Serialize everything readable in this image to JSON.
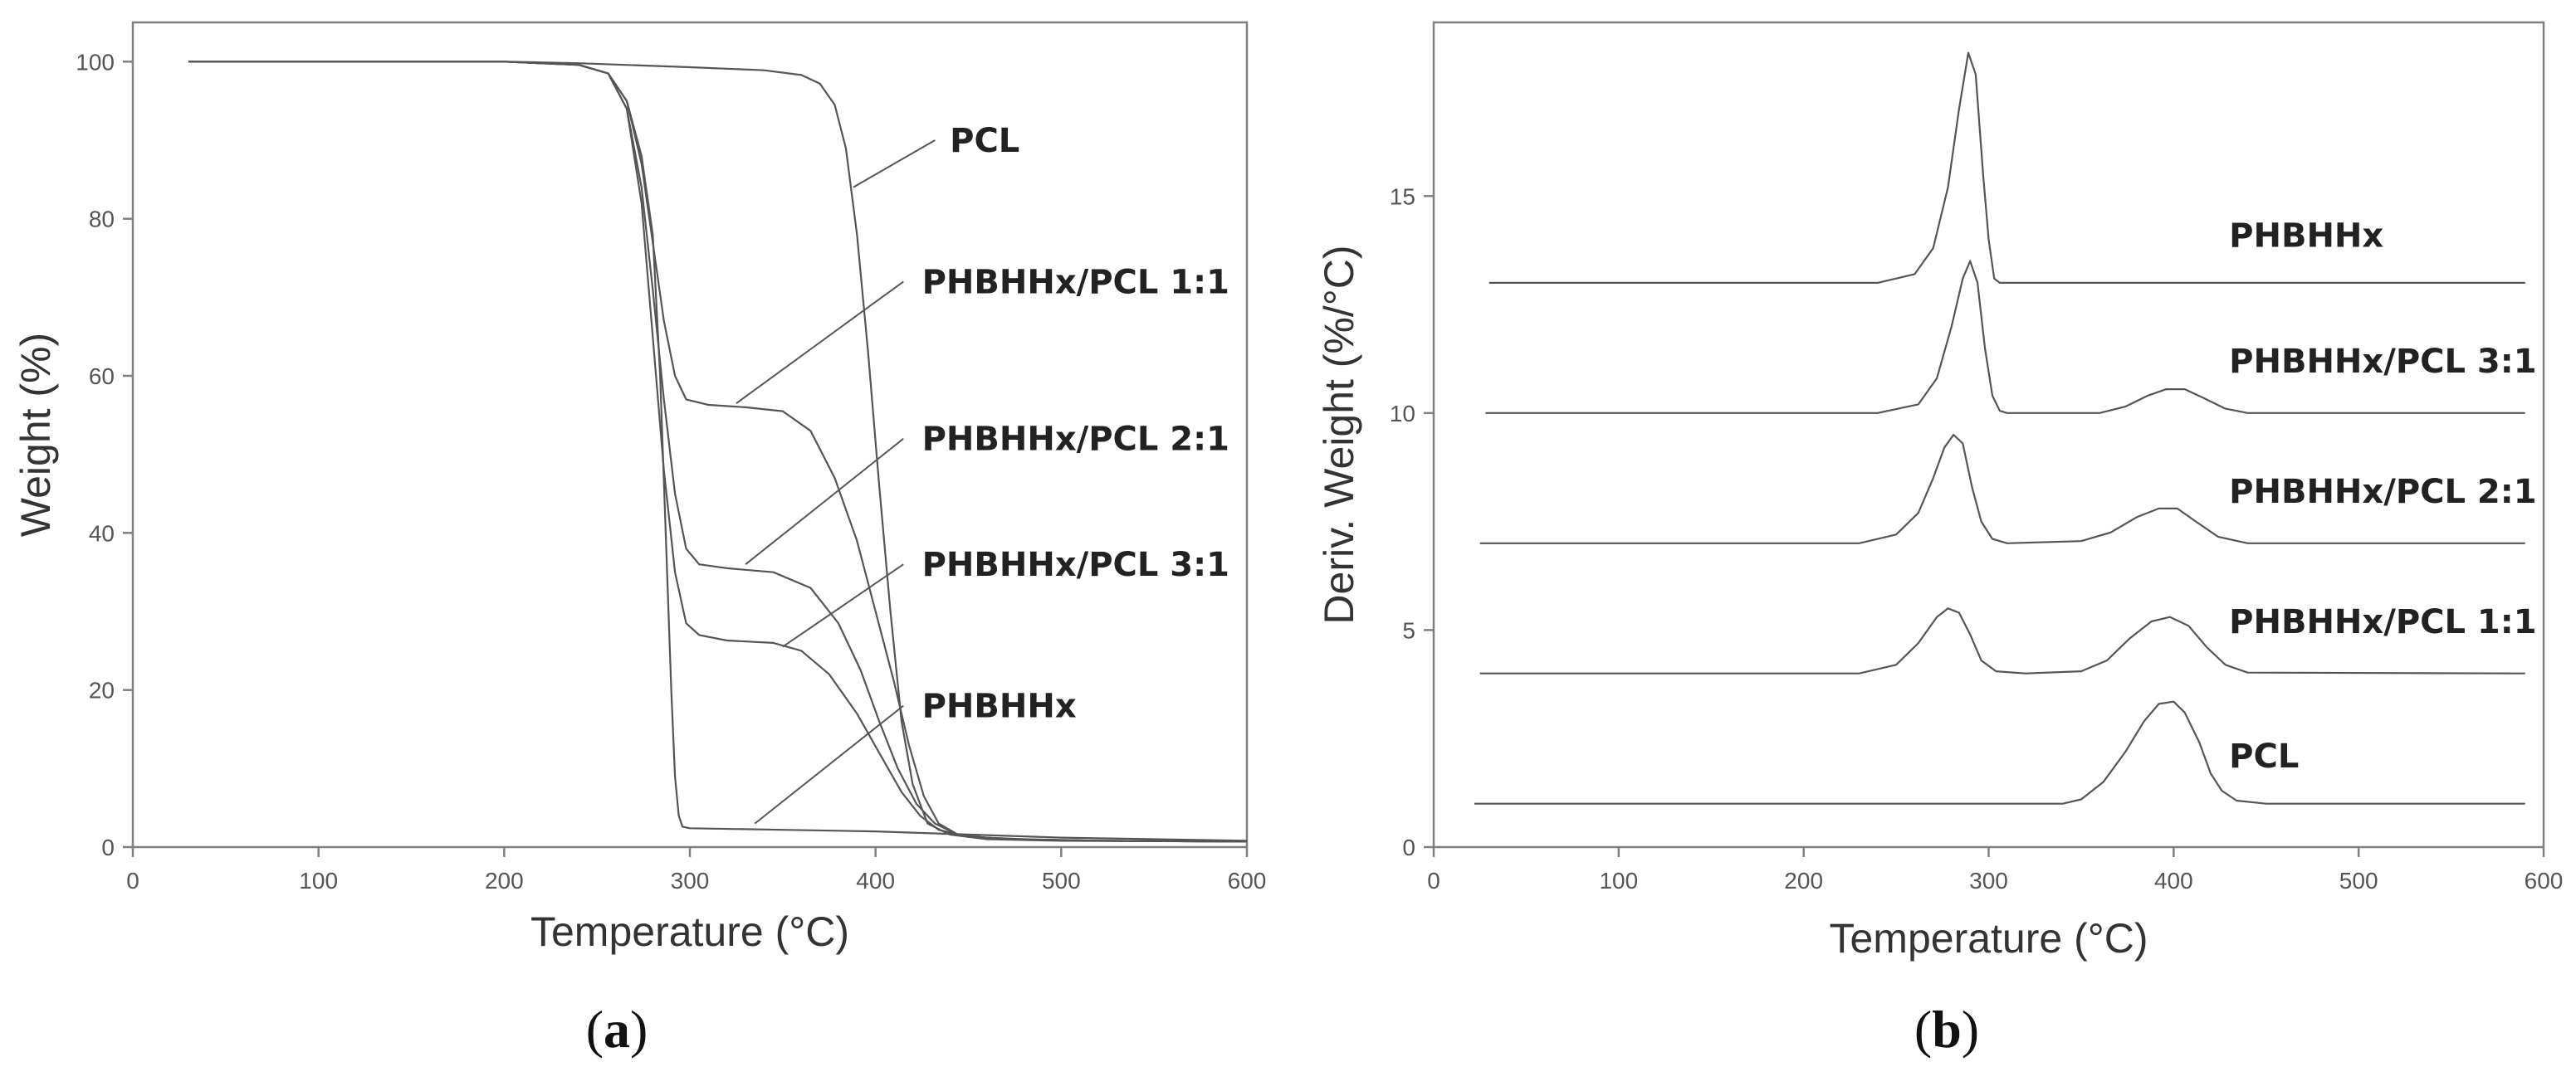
{
  "figure": {
    "panels": [
      {
        "open": "(",
        "letter": "a",
        "close": ")"
      },
      {
        "open": "(",
        "letter": "b",
        "close": ")"
      }
    ]
  },
  "colors": {
    "curve": "#555555",
    "frame": "#808080",
    "text": "#222222"
  },
  "chart_data": [
    {
      "type": "line",
      "xlabel": "Temperature (°C)",
      "ylabel": "Weight (%)",
      "xlim": [
        0,
        600
      ],
      "ylim": [
        0,
        105
      ],
      "xticks": [
        0,
        100,
        200,
        300,
        400,
        500,
        600
      ],
      "yticks": [
        0,
        20,
        40,
        60,
        80,
        100
      ],
      "grid": false,
      "legend": "inline labels with leader lines",
      "series": [
        {
          "name": "PCL",
          "label_pos": [
            440,
            90
          ],
          "leader": [
            [
              388,
              84
            ],
            [
              432,
              90
            ]
          ],
          "points": [
            [
              30,
              100
            ],
            [
              200,
              100
            ],
            [
              240,
              99.8
            ],
            [
              300,
              99.3
            ],
            [
              340,
              98.9
            ],
            [
              360,
              98.3
            ],
            [
              370,
              97.2
            ],
            [
              378,
              94.5
            ],
            [
              384,
              89
            ],
            [
              390,
              78
            ],
            [
              396,
              63
            ],
            [
              402,
              46
            ],
            [
              408,
              30
            ],
            [
              414,
              16
            ],
            [
              420,
              8
            ],
            [
              428,
              3
            ],
            [
              440,
              1.6
            ],
            [
              460,
              1.0
            ],
            [
              500,
              0.8
            ],
            [
              600,
              0.7
            ]
          ]
        },
        {
          "name": "PHBHHx/PCL 1:1",
          "label_pos": [
            425,
            72
          ],
          "leader": [
            [
              325,
              56.5
            ],
            [
              415,
              72
            ]
          ],
          "points": [
            [
              30,
              100
            ],
            [
              200,
              100
            ],
            [
              240,
              99.6
            ],
            [
              256,
              98.5
            ],
            [
              266,
              95
            ],
            [
              274,
              87
            ],
            [
              280,
              77
            ],
            [
              286,
              67
            ],
            [
              292,
              60
            ],
            [
              298,
              57
            ],
            [
              310,
              56.3
            ],
            [
              330,
              56
            ],
            [
              350,
              55.5
            ],
            [
              365,
              53
            ],
            [
              378,
              47
            ],
            [
              390,
              39
            ],
            [
              400,
              30
            ],
            [
              410,
              21
            ],
            [
              418,
              13
            ],
            [
              426,
              6.5
            ],
            [
              434,
              3
            ],
            [
              445,
              1.5
            ],
            [
              470,
              1.0
            ],
            [
              520,
              0.8
            ],
            [
              600,
              0.7
            ]
          ]
        },
        {
          "name": "PHBHHx/PCL 2:1",
          "label_pos": [
            425,
            52
          ],
          "leader": [
            [
              330,
              36
            ],
            [
              415,
              52
            ]
          ],
          "points": [
            [
              30,
              100
            ],
            [
              200,
              100
            ],
            [
              240,
              99.6
            ],
            [
              256,
              98.5
            ],
            [
              266,
              94
            ],
            [
              274,
              84
            ],
            [
              280,
              71
            ],
            [
              286,
              57
            ],
            [
              292,
              45
            ],
            [
              298,
              38
            ],
            [
              305,
              36
            ],
            [
              320,
              35.5
            ],
            [
              345,
              35
            ],
            [
              365,
              33
            ],
            [
              380,
              28.5
            ],
            [
              392,
              22.5
            ],
            [
              402,
              16
            ],
            [
              412,
              10
            ],
            [
              422,
              5.5
            ],
            [
              432,
              3
            ],
            [
              445,
              1.5
            ],
            [
              470,
              1.0
            ],
            [
              520,
              0.8
            ],
            [
              600,
              0.7
            ]
          ]
        },
        {
          "name": "PHBHHx/PCL 3:1",
          "label_pos": [
            425,
            36
          ],
          "leader": [
            [
              350,
              25.5
            ],
            [
              415,
              36
            ]
          ],
          "points": [
            [
              30,
              100
            ],
            [
              200,
              100
            ],
            [
              240,
              99.6
            ],
            [
              256,
              98.5
            ],
            [
              266,
              94
            ],
            [
              274,
              82
            ],
            [
              280,
              65
            ],
            [
              286,
              48
            ],
            [
              292,
              35
            ],
            [
              298,
              28.5
            ],
            [
              305,
              27
            ],
            [
              320,
              26.3
            ],
            [
              345,
              26
            ],
            [
              360,
              25
            ],
            [
              375,
              22
            ],
            [
              390,
              17
            ],
            [
              402,
              12
            ],
            [
              414,
              7
            ],
            [
              424,
              4
            ],
            [
              434,
              2.2
            ],
            [
              450,
              1.3
            ],
            [
              480,
              1.0
            ],
            [
              520,
              0.8
            ],
            [
              600,
              0.7
            ]
          ]
        },
        {
          "name": "PHBHHx",
          "label_pos": [
            425,
            18
          ],
          "leader": [
            [
              335,
              3
            ],
            [
              415,
              18
            ]
          ],
          "points": [
            [
              30,
              100
            ],
            [
              200,
              100
            ],
            [
              240,
              99.6
            ],
            [
              256,
              98.5
            ],
            [
              266,
              95
            ],
            [
              274,
              88
            ],
            [
              280,
              78
            ],
            [
              284,
              60
            ],
            [
              287,
              40
            ],
            [
              290,
              20
            ],
            [
              292,
              9
            ],
            [
              294,
              4
            ],
            [
              296,
              2.6
            ],
            [
              300,
              2.4
            ],
            [
              350,
              2.2
            ],
            [
              400,
              2.0
            ],
            [
              450,
              1.6
            ],
            [
              500,
              1.2
            ],
            [
              600,
              0.8
            ]
          ]
        }
      ]
    },
    {
      "type": "line",
      "xlabel": "Temperature (°C)",
      "ylabel": "Deriv. Weight (%/°C)",
      "xlim": [
        0,
        600
      ],
      "ylim": [
        0,
        19
      ],
      "xticks": [
        0,
        100,
        200,
        300,
        400,
        500,
        600
      ],
      "yticks": [
        0,
        5,
        10,
        15
      ],
      "grid": false,
      "legend": "inline labels beside curves",
      "series": [
        {
          "name": "PHBHHx",
          "label_pos": [
            430,
            14.1
          ],
          "points": [
            [
              30,
              13
            ],
            [
              240,
              13
            ],
            [
              260,
              13.2
            ],
            [
              270,
              13.8
            ],
            [
              278,
              15.2
            ],
            [
              284,
              17
            ],
            [
              289,
              18.3
            ],
            [
              293,
              17.8
            ],
            [
              297,
              15.5
            ],
            [
              300,
              14
            ],
            [
              303,
              13.1
            ],
            [
              306,
              13
            ],
            [
              590,
              13
            ]
          ]
        },
        {
          "name": "PHBHHx/PCL 3:1",
          "label_pos": [
            430,
            11.2
          ],
          "points": [
            [
              28,
              10
            ],
            [
              240,
              10
            ],
            [
              262,
              10.2
            ],
            [
              272,
              10.8
            ],
            [
              280,
              12
            ],
            [
              286,
              13.1
            ],
            [
              290,
              13.5
            ],
            [
              294,
              13
            ],
            [
              298,
              11.5
            ],
            [
              302,
              10.4
            ],
            [
              306,
              10.05
            ],
            [
              310,
              10
            ],
            [
              360,
              10
            ],
            [
              374,
              10.15
            ],
            [
              386,
              10.4
            ],
            [
              396,
              10.55
            ],
            [
              406,
              10.55
            ],
            [
              416,
              10.35
            ],
            [
              428,
              10.1
            ],
            [
              440,
              10
            ],
            [
              590,
              10
            ]
          ]
        },
        {
          "name": "PHBHHx/PCL 2:1",
          "label_pos": [
            430,
            8.2
          ],
          "points": [
            [
              25,
              7
            ],
            [
              230,
              7
            ],
            [
              250,
              7.2
            ],
            [
              262,
              7.7
            ],
            [
              270,
              8.5
            ],
            [
              276,
              9.2
            ],
            [
              281,
              9.5
            ],
            [
              286,
              9.3
            ],
            [
              291,
              8.3
            ],
            [
              296,
              7.5
            ],
            [
              302,
              7.1
            ],
            [
              310,
              7
            ],
            [
              350,
              7.05
            ],
            [
              366,
              7.25
            ],
            [
              380,
              7.6
            ],
            [
              392,
              7.8
            ],
            [
              402,
              7.8
            ],
            [
              412,
              7.5
            ],
            [
              424,
              7.15
            ],
            [
              440,
              7
            ],
            [
              590,
              7
            ]
          ]
        },
        {
          "name": "PHBHHx/PCL 1:1",
          "label_pos": [
            430,
            5.2
          ],
          "points": [
            [
              25,
              4
            ],
            [
              230,
              4
            ],
            [
              250,
              4.2
            ],
            [
              262,
              4.7
            ],
            [
              272,
              5.3
            ],
            [
              278,
              5.5
            ],
            [
              284,
              5.4
            ],
            [
              290,
              4.9
            ],
            [
              296,
              4.3
            ],
            [
              304,
              4.05
            ],
            [
              320,
              4
            ],
            [
              350,
              4.05
            ],
            [
              364,
              4.3
            ],
            [
              376,
              4.8
            ],
            [
              388,
              5.2
            ],
            [
              398,
              5.3
            ],
            [
              408,
              5.1
            ],
            [
              418,
              4.6
            ],
            [
              428,
              4.2
            ],
            [
              440,
              4.02
            ],
            [
              590,
              4
            ]
          ]
        },
        {
          "name": "PCL",
          "label_pos": [
            430,
            2.1
          ],
          "points": [
            [
              22,
              1
            ],
            [
              340,
              1
            ],
            [
              350,
              1.1
            ],
            [
              362,
              1.5
            ],
            [
              374,
              2.2
            ],
            [
              384,
              2.9
            ],
            [
              392,
              3.3
            ],
            [
              400,
              3.35
            ],
            [
              406,
              3.1
            ],
            [
              414,
              2.4
            ],
            [
              420,
              1.7
            ],
            [
              426,
              1.3
            ],
            [
              434,
              1.07
            ],
            [
              450,
              1
            ],
            [
              590,
              1
            ]
          ]
        }
      ]
    }
  ]
}
